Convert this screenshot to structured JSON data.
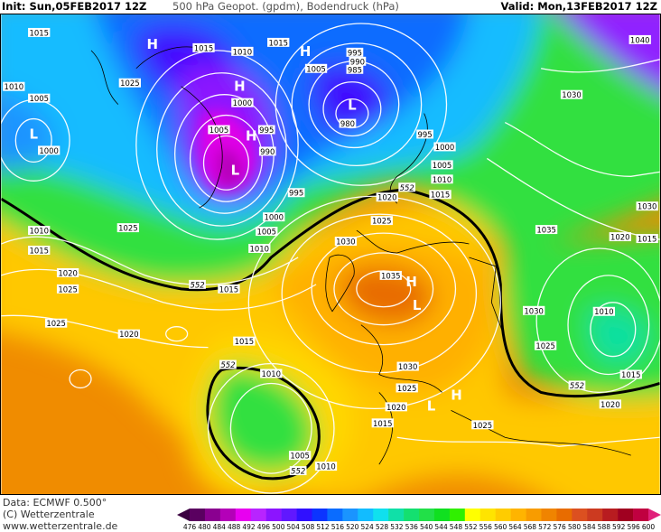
{
  "header": {
    "init": "Init: Sun,05FEB2017 12Z",
    "title": "500 hPa Geopot. (gpdm), Bodendruck (hPa)",
    "valid": "Valid: Mon,13FEB2017 12Z"
  },
  "footer": {
    "data_source": "Data: ECMWF   0.500°",
    "copyright": "(C) Wetterzentrale",
    "website": "www.wetterzentrale.de"
  },
  "legend": {
    "unit": "gpdm",
    "ticks": [
      "476",
      "480",
      "484",
      "488",
      "492",
      "496",
      "500",
      "504",
      "508",
      "512",
      "516",
      "520",
      "524",
      "528",
      "532",
      "536",
      "540",
      "544",
      "548",
      "552",
      "556",
      "560",
      "564",
      "568",
      "572",
      "576",
      "580",
      "584",
      "588",
      "592",
      "596",
      "600"
    ],
    "colors": [
      "#5a0060",
      "#8a0090",
      "#b400b8",
      "#e800f0",
      "#b824ff",
      "#8c14ff",
      "#6018ff",
      "#3010ff",
      "#0c34ff",
      "#0a6cff",
      "#1a94ff",
      "#12bcff",
      "#10e0ee",
      "#10e0a8",
      "#14e070",
      "#22e048",
      "#10e020",
      "#30f000",
      "#ffff00",
      "#ffe400",
      "#ffcc00",
      "#ffb400",
      "#f89c00",
      "#f08400",
      "#e86c00",
      "#dc5020",
      "#cc3a20",
      "#b81c20",
      "#a00020",
      "#c00040"
    ],
    "low_arrow_color": "#3a0040",
    "high_arrow_color": "#e0207a"
  },
  "map": {
    "contour_552_label": "552",
    "isobar_labels": [
      "1015",
      "1015",
      "1010",
      "1015",
      "1005",
      "995",
      "990",
      "985",
      "1040",
      "1010",
      "1005",
      "1025",
      "1000",
      "980",
      "1030",
      "1005",
      "995",
      "990",
      "995",
      "1000",
      "1000",
      "1005",
      "1010",
      "1015",
      "995",
      "1020",
      "552",
      "1000",
      "1025",
      "1005",
      "1035",
      "1030",
      "1010",
      "1025",
      "1010",
      "1020",
      "1015",
      "1015",
      "1030",
      "1020",
      "1025",
      "552",
      "1015",
      "1035",
      "1030",
      "1010",
      "1025",
      "1020",
      "1025",
      "1015",
      "552",
      "1010",
      "1030",
      "1025",
      "1015",
      "552",
      "1020",
      "1020",
      "1015",
      "1025",
      "1005",
      "1010",
      "552"
    ],
    "pressure_centers": [
      "H",
      "H",
      "H",
      "H",
      "L",
      "L",
      "L",
      "H",
      "L",
      "H",
      "L"
    ]
  }
}
